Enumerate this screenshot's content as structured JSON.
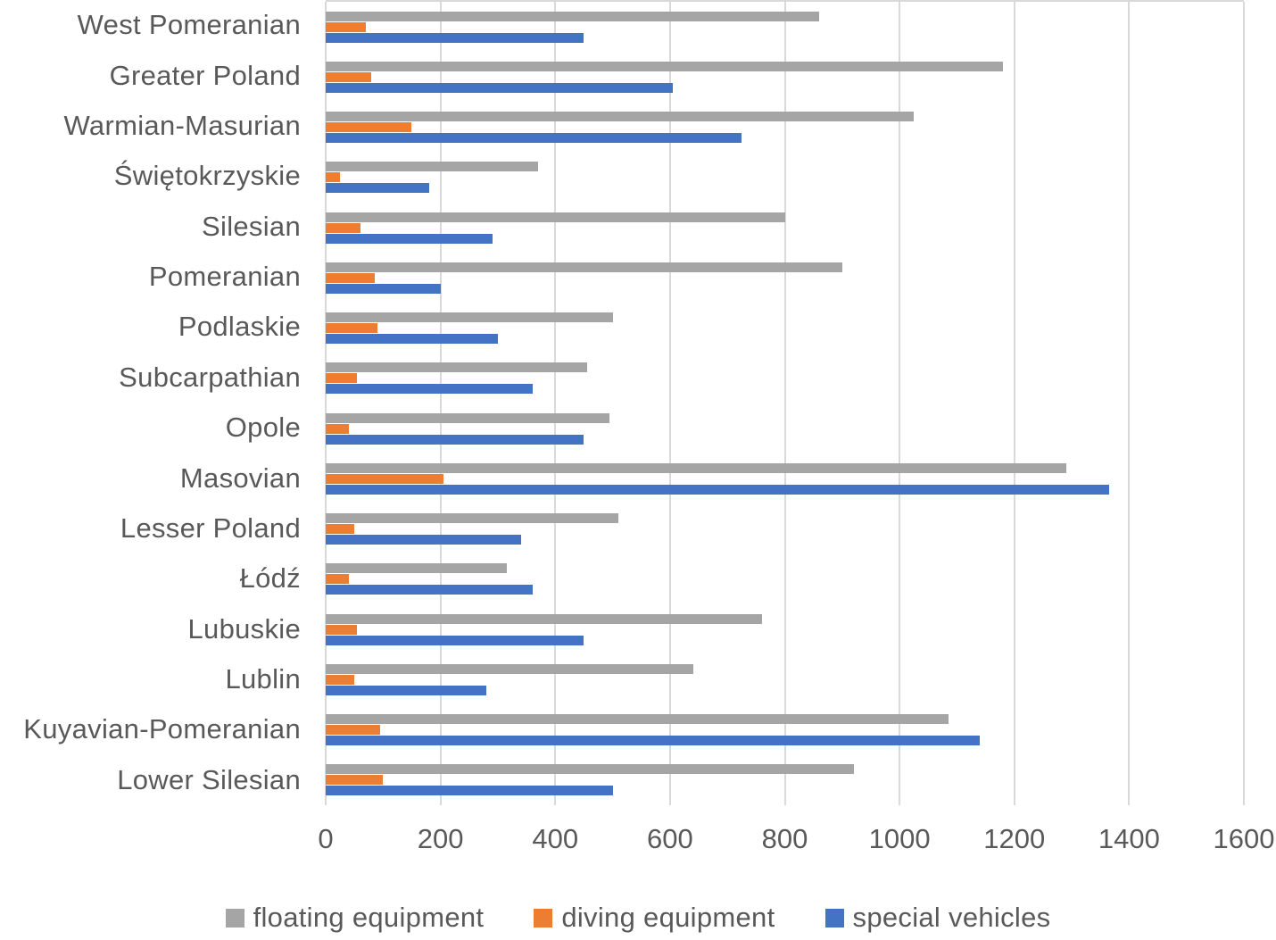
{
  "chart_data": {
    "type": "bar",
    "orientation": "horizontal",
    "title": "",
    "xlabel": "",
    "ylabel": "",
    "xlim": [
      0,
      1600
    ],
    "xticks": [
      0,
      200,
      400,
      600,
      800,
      1000,
      1200,
      1400,
      1600
    ],
    "grid": true,
    "legend_position": "bottom",
    "categories": [
      "West Pomeranian",
      "Greater Poland",
      "Warmian-Masurian",
      "Świętokrzyskie",
      "Silesian",
      "Pomeranian",
      "Podlaskie",
      "Subcarpathian",
      "Opole",
      "Masovian",
      "Lesser Poland",
      "Łódź",
      "Lubuskie",
      "Lublin",
      "Kuyavian-Pomeranian",
      "Lower Silesian"
    ],
    "series": [
      {
        "name": "floating equipment",
        "color": "#A5A5A5",
        "values": [
          860,
          1180,
          1025,
          370,
          800,
          900,
          500,
          455,
          495,
          1290,
          510,
          315,
          760,
          640,
          1085,
          920
        ]
      },
      {
        "name": "diving equipment",
        "color": "#ED7D31",
        "values": [
          70,
          80,
          150,
          25,
          60,
          85,
          90,
          55,
          40,
          205,
          50,
          40,
          55,
          50,
          95,
          100
        ]
      },
      {
        "name": "special vehicles",
        "color": "#4472C4",
        "values": [
          450,
          605,
          725,
          180,
          290,
          200,
          300,
          360,
          450,
          1365,
          340,
          360,
          450,
          280,
          1140,
          500
        ]
      }
    ]
  },
  "colors": {
    "grid": "#D9D9D9",
    "text": "#595959",
    "background": "#FFFFFF"
  }
}
